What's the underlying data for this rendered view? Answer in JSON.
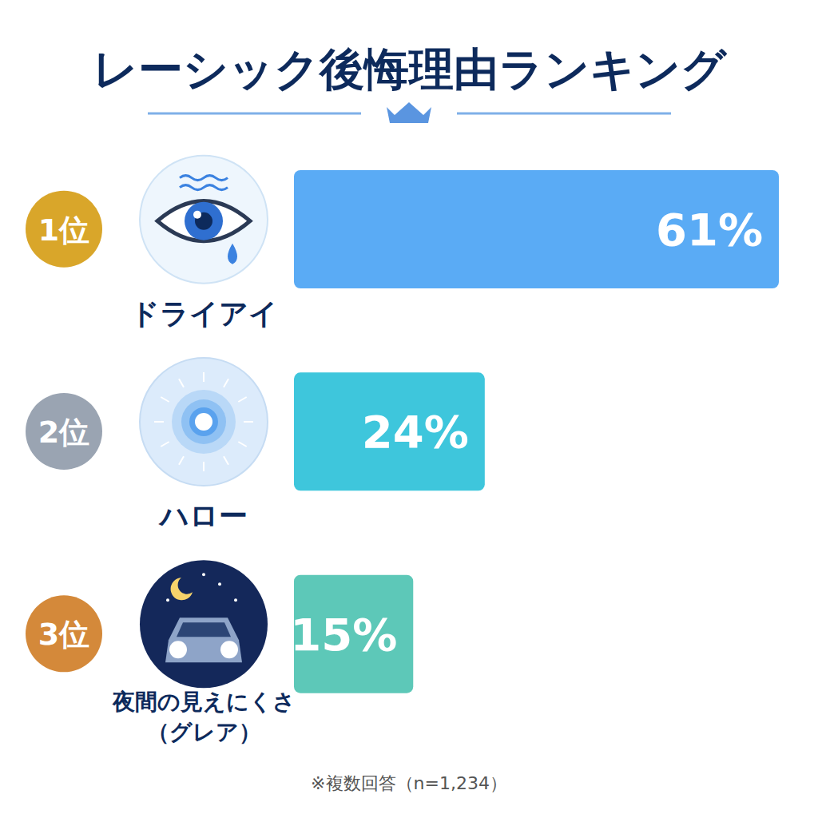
{
  "chart_data": {
    "type": "bar",
    "orientation": "horizontal",
    "title": "レーシック後悔理由ランキング",
    "ranks": [
      "1位",
      "2位",
      "3位"
    ],
    "categories": [
      "ドライアイ",
      "ハロー",
      "夜間の見えにくさ（グレア）"
    ],
    "values": [
      61,
      24,
      15
    ],
    "value_labels": [
      "61%",
      "24%",
      "15%"
    ],
    "colors": [
      "#5aabf5",
      "#3ec6dc",
      "#5dc8b8"
    ],
    "data_labels": true,
    "tick_labels": false,
    "xlim": [
      0,
      61
    ],
    "grid": false,
    "footnote": "※複数回答（n=1,234）"
  }
}
